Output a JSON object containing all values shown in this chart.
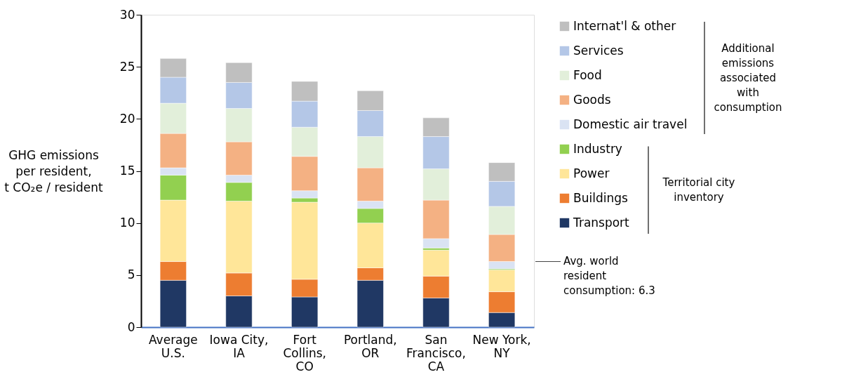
{
  "chart_data": {
    "type": "bar",
    "stacked": true,
    "ylabel": "GHG emissions per resident, t CO₂e / resident",
    "categories": [
      "Average U.S.",
      "Iowa City, IA",
      "Fort Collins, CO",
      "Portland, OR",
      "San Francisco, CA",
      "New York, NY"
    ],
    "series": [
      {
        "name": "Transport",
        "color": "#203864",
        "values": [
          4.5,
          3.0,
          2.9,
          4.5,
          2.8,
          1.4
        ]
      },
      {
        "name": "Buildings",
        "color": "#ed7d31",
        "values": [
          1.8,
          2.2,
          1.7,
          1.2,
          2.1,
          2.0
        ]
      },
      {
        "name": "Power",
        "color": "#ffe699",
        "values": [
          5.9,
          6.9,
          7.4,
          4.3,
          2.5,
          2.1
        ]
      },
      {
        "name": "Industry",
        "color": "#92d050",
        "values": [
          2.4,
          1.8,
          0.4,
          1.4,
          0.2,
          0.1
        ]
      },
      {
        "name": "Domestic air travel",
        "color": "#dae3f3",
        "values": [
          0.7,
          0.7,
          0.7,
          0.7,
          0.9,
          0.7
        ]
      },
      {
        "name": "Goods",
        "color": "#f4b183",
        "values": [
          3.3,
          3.2,
          3.3,
          3.2,
          3.7,
          2.6
        ]
      },
      {
        "name": "Food",
        "color": "#e2efda",
        "values": [
          2.9,
          3.2,
          2.8,
          3.0,
          3.0,
          2.7
        ]
      },
      {
        "name": "Services",
        "color": "#b4c7e7",
        "values": [
          2.5,
          2.5,
          2.5,
          2.5,
          3.1,
          2.4
        ]
      },
      {
        "name": "Internat'l & other",
        "color": "#bfbfbf",
        "values": [
          1.8,
          1.9,
          1.9,
          1.9,
          1.8,
          1.8
        ]
      }
    ],
    "ylim": [
      0,
      30
    ],
    "yticks": [
      0,
      5,
      10,
      15,
      20,
      25,
      30
    ],
    "legend": "right",
    "ref_lines": [
      {
        "axis": "y",
        "value": 6.3,
        "label": "Avg. world resident consumption: 6.3"
      }
    ],
    "annotations": [
      "Additional emissions associated with consumption",
      "Territorial city inventory"
    ]
  }
}
